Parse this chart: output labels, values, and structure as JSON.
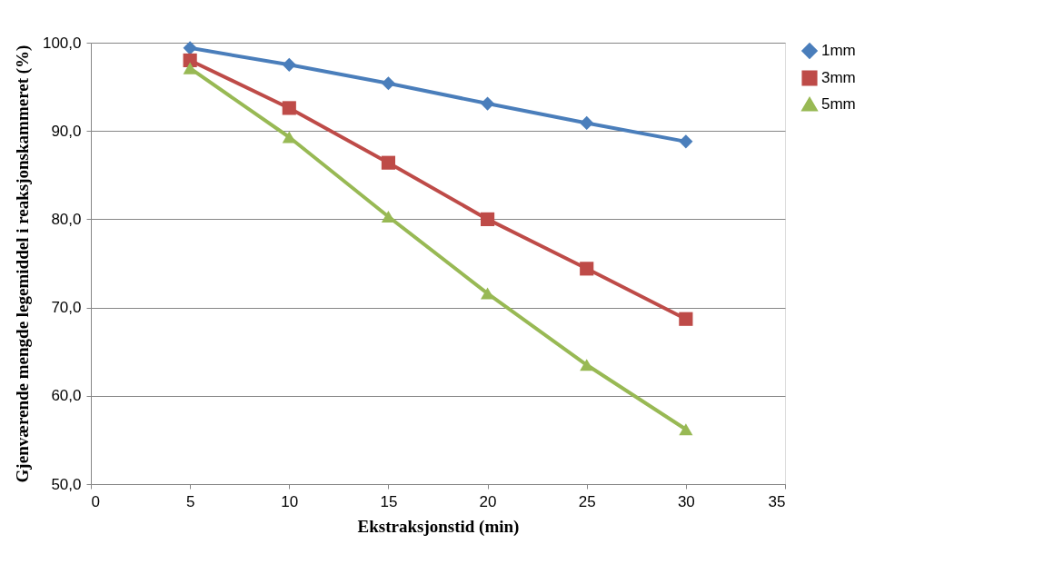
{
  "chart_data": {
    "type": "line",
    "xlabel": "Ekstraksjonstid (min)",
    "ylabel": "Gjenværende mengde legemiddel i reaksjonskammeret (%)",
    "x": [
      5,
      10,
      15,
      20,
      25,
      30
    ],
    "series": [
      {
        "name": "1mm",
        "color": "#4a7ebb",
        "marker": "diamond",
        "values": [
          99.4,
          97.5,
          95.4,
          93.1,
          90.9,
          88.8
        ]
      },
      {
        "name": "3mm",
        "color": "#be4b48",
        "marker": "square",
        "values": [
          98.0,
          92.6,
          86.4,
          80.0,
          74.4,
          68.7
        ]
      },
      {
        "name": "5mm",
        "color": "#98b954",
        "marker": "triangle",
        "values": [
          97.1,
          89.3,
          80.3,
          71.6,
          63.5,
          56.2
        ]
      }
    ],
    "xlim": [
      0,
      35
    ],
    "xticks": [
      0,
      5,
      10,
      15,
      20,
      25,
      30,
      35
    ],
    "ylim": [
      50,
      100
    ],
    "yticks": [
      {
        "value": 50,
        "label": "50,0"
      },
      {
        "value": 60,
        "label": "60,0"
      },
      {
        "value": 70,
        "label": "70,0"
      },
      {
        "value": 80,
        "label": "80,0"
      },
      {
        "value": 90,
        "label": "90,0"
      },
      {
        "value": 100,
        "label": "100,0"
      }
    ],
    "grid": "y",
    "legend": "right",
    "line_style": "solid"
  }
}
